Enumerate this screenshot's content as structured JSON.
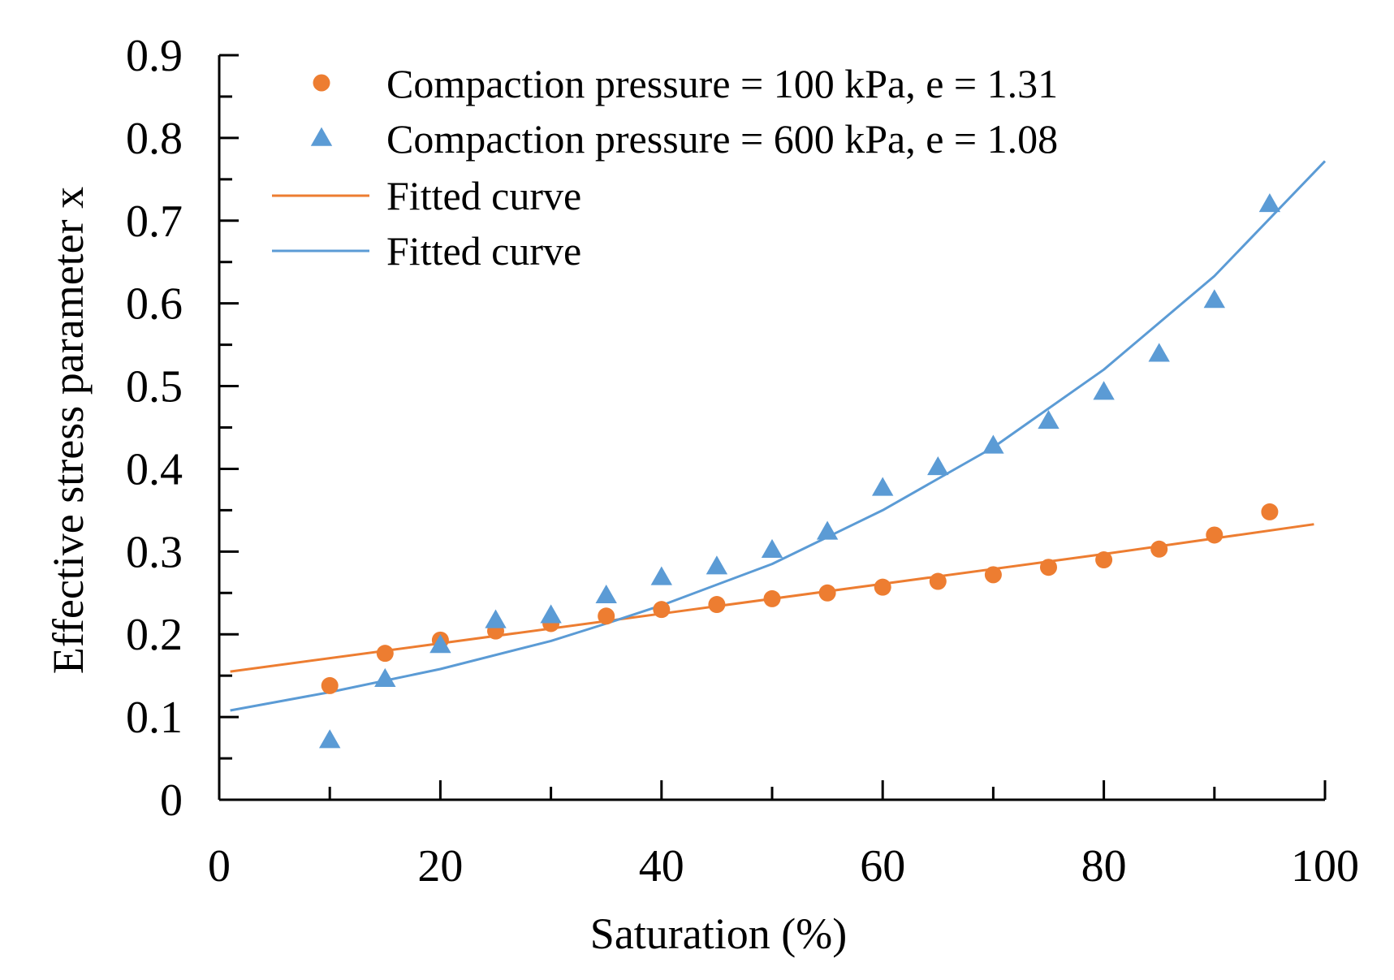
{
  "chart_data": {
    "type": "scatter",
    "title": "",
    "xlabel": "Saturation (%)",
    "ylabel": "Effective stress parameter x",
    "xlim": [
      0,
      100
    ],
    "ylim": [
      0,
      0.9
    ],
    "x_ticks": [
      "0",
      "20",
      "40",
      "60",
      "80",
      "100"
    ],
    "y_ticks": [
      "0",
      "0.1",
      "0.2",
      "0.3",
      "0.4",
      "0.5",
      "0.6",
      "0.7",
      "0.8",
      "0.9"
    ],
    "grid": false,
    "legend_position": "top-left",
    "series": [
      {
        "name": "Compaction pressure = 100 kPa, e = 1.31",
        "kind": "points",
        "marker": "circle",
        "color": "#ED7D31",
        "x": [
          10,
          15,
          20,
          25,
          30,
          35,
          40,
          45,
          50,
          55,
          60,
          65,
          70,
          75,
          80,
          85,
          90,
          95
        ],
        "y": [
          0.138,
          0.177,
          0.193,
          0.204,
          0.213,
          0.222,
          0.23,
          0.236,
          0.243,
          0.25,
          0.257,
          0.264,
          0.272,
          0.281,
          0.29,
          0.303,
          0.32,
          0.348
        ]
      },
      {
        "name": "Compaction pressure = 600 kPa, e = 1.08",
        "kind": "points",
        "marker": "triangle",
        "color": "#5B9BD5",
        "x": [
          10,
          15,
          20,
          25,
          30,
          35,
          40,
          45,
          50,
          55,
          60,
          65,
          70,
          75,
          80,
          85,
          90,
          95
        ],
        "y": [
          0.072,
          0.146,
          0.187,
          0.217,
          0.223,
          0.247,
          0.269,
          0.282,
          0.302,
          0.324,
          0.377,
          0.402,
          0.428,
          0.458,
          0.493,
          0.539,
          0.604,
          0.72
        ]
      },
      {
        "name": "Fitted curve",
        "kind": "line",
        "color": "#ED7D31",
        "x": [
          1,
          20,
          40,
          60,
          80,
          99
        ],
        "y": [
          0.155,
          0.189,
          0.225,
          0.261,
          0.297,
          0.333
        ]
      },
      {
        "name": "Fitted curve",
        "kind": "line",
        "color": "#5B9BD5",
        "x": [
          1,
          10,
          20,
          30,
          35,
          40,
          50,
          60,
          70,
          80,
          90,
          100
        ],
        "y": [
          0.108,
          0.13,
          0.158,
          0.192,
          0.213,
          0.235,
          0.285,
          0.35,
          0.426,
          0.52,
          0.633,
          0.772
        ]
      }
    ]
  }
}
